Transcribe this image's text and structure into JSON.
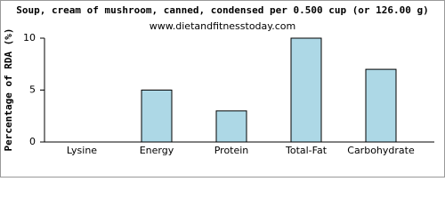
{
  "chart_data": {
    "type": "bar",
    "title": "Soup, cream of mushroom, canned, condensed per 0.500 cup (or 126.00 g)",
    "subtitle": "www.dietandfitnesstoday.com",
    "y_label": "Percentage of RDA (%)",
    "categories": [
      "Lysine",
      "Energy",
      "Protein",
      "Total-Fat",
      "Carbohydrate"
    ],
    "values": [
      0,
      5,
      3,
      10,
      7
    ],
    "color": "#add8e6",
    "ylim": [
      0,
      10
    ],
    "yticks": [
      0,
      5,
      10
    ],
    "grid": false
  }
}
